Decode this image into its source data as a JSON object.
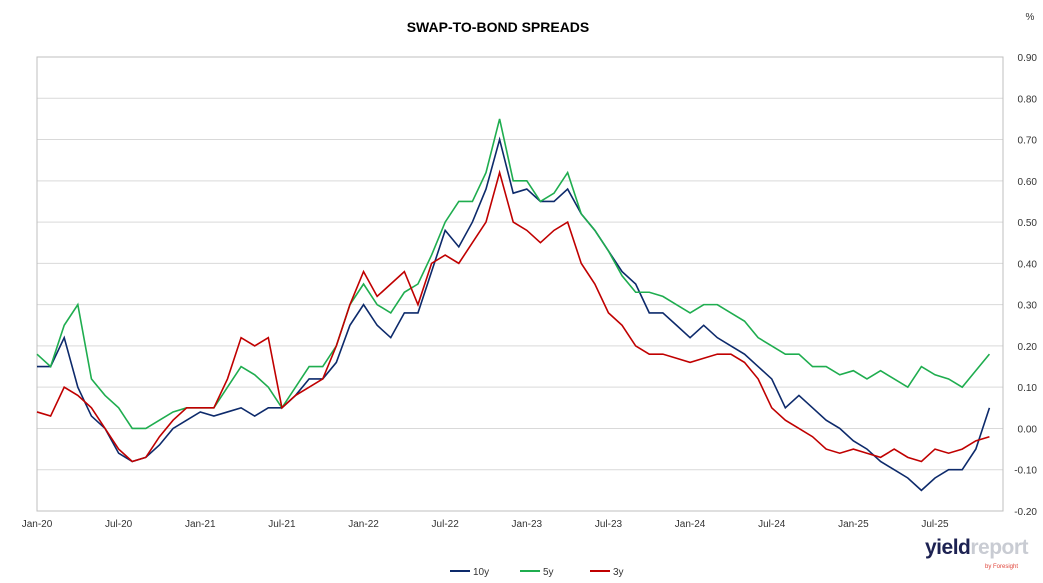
{
  "chart_data": {
    "type": "line",
    "title": "SWAP-TO-BOND SPREADS",
    "ylabel": "%",
    "ylim": [
      -0.2,
      0.9
    ],
    "yticks": [
      "-0.20",
      "-0.10",
      "0.00",
      "0.10",
      "0.20",
      "0.30",
      "0.40",
      "0.50",
      "0.60",
      "0.70",
      "0.80",
      "0.90"
    ],
    "xticks": [
      "Jan-20",
      "Jul-20",
      "Jan-21",
      "Jul-21",
      "Jan-22",
      "Jul-22",
      "Jan-23",
      "Jul-23",
      "Jan-24",
      "Jul-24",
      "Jan-25",
      "Jul-25"
    ],
    "x_start": "Jan-20",
    "x_frequency": "monthly",
    "grid": "horizontal",
    "legend_position": "bottom",
    "series": [
      {
        "name": "10y",
        "color": "#0d2a6b",
        "values": [
          0.15,
          0.15,
          0.22,
          0.1,
          0.03,
          0.0,
          -0.06,
          -0.08,
          -0.07,
          -0.04,
          0.0,
          0.02,
          0.04,
          0.03,
          0.04,
          0.05,
          0.03,
          0.05,
          0.05,
          0.08,
          0.12,
          0.12,
          0.16,
          0.25,
          0.3,
          0.25,
          0.22,
          0.28,
          0.28,
          0.38,
          0.48,
          0.44,
          0.5,
          0.58,
          0.7,
          0.57,
          0.58,
          0.55,
          0.55,
          0.58,
          0.52,
          0.48,
          0.43,
          0.38,
          0.35,
          0.28,
          0.28,
          0.25,
          0.22,
          0.25,
          0.22,
          0.2,
          0.18,
          0.15,
          0.12,
          0.05,
          0.08,
          0.05,
          0.02,
          0.0,
          -0.03,
          -0.05,
          -0.08,
          -0.1,
          -0.12,
          -0.15,
          -0.12,
          -0.1,
          -0.1,
          -0.05,
          0.05
        ]
      },
      {
        "name": "5y",
        "color": "#1fad4f",
        "values": [
          0.18,
          0.15,
          0.25,
          0.3,
          0.12,
          0.08,
          0.05,
          0.0,
          0.0,
          0.02,
          0.04,
          0.05,
          0.05,
          0.05,
          0.1,
          0.15,
          0.13,
          0.1,
          0.05,
          0.1,
          0.15,
          0.15,
          0.2,
          0.3,
          0.35,
          0.3,
          0.28,
          0.33,
          0.35,
          0.42,
          0.5,
          0.55,
          0.55,
          0.62,
          0.75,
          0.6,
          0.6,
          0.55,
          0.57,
          0.62,
          0.52,
          0.48,
          0.43,
          0.37,
          0.33,
          0.33,
          0.32,
          0.3,
          0.28,
          0.3,
          0.3,
          0.28,
          0.26,
          0.22,
          0.2,
          0.18,
          0.18,
          0.15,
          0.15,
          0.13,
          0.14,
          0.12,
          0.14,
          0.12,
          0.1,
          0.15,
          0.13,
          0.12,
          0.1,
          0.14,
          0.18
        ]
      },
      {
        "name": "3y",
        "color": "#c00000",
        "values": [
          0.04,
          0.03,
          0.1,
          0.08,
          0.05,
          0.0,
          -0.05,
          -0.08,
          -0.07,
          -0.02,
          0.02,
          0.05,
          0.05,
          0.05,
          0.12,
          0.22,
          0.2,
          0.22,
          0.05,
          0.08,
          0.1,
          0.12,
          0.2,
          0.3,
          0.38,
          0.32,
          0.35,
          0.38,
          0.3,
          0.4,
          0.42,
          0.4,
          0.45,
          0.5,
          0.62,
          0.5,
          0.48,
          0.45,
          0.48,
          0.5,
          0.4,
          0.35,
          0.28,
          0.25,
          0.2,
          0.18,
          0.18,
          0.17,
          0.16,
          0.17,
          0.18,
          0.18,
          0.16,
          0.12,
          0.05,
          0.02,
          0.0,
          -0.02,
          -0.05,
          -0.06,
          -0.05,
          -0.06,
          -0.07,
          -0.05,
          -0.07,
          -0.08,
          -0.05,
          -0.06,
          -0.05,
          -0.03,
          -0.02
        ]
      }
    ]
  },
  "logo": {
    "text_a": "yield",
    "text_b": "report",
    "by": "by Foresight"
  }
}
